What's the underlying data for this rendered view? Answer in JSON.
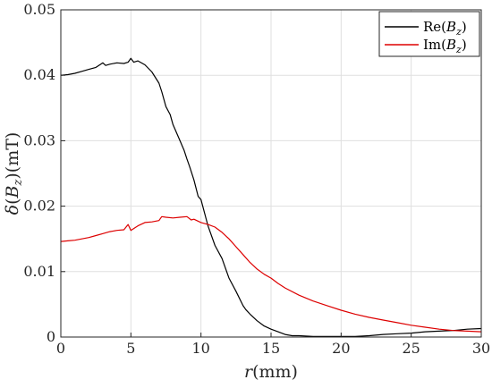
{
  "chart_data": {
    "type": "line",
    "xlabel": "r(mm)",
    "ylabel": "δ(B_z)(mT)",
    "xlim": [
      0,
      30
    ],
    "ylim": [
      0,
      0.05
    ],
    "xticks": [
      "0",
      "5",
      "10",
      "15",
      "20",
      "25",
      "30"
    ],
    "yticks": [
      "0",
      "0.01",
      "0.02",
      "0.03",
      "0.04",
      "0.05"
    ],
    "grid": true,
    "legend_position": "top-right",
    "series": [
      {
        "name": "Re(B_z)",
        "color": "#000000",
        "x": [
          0,
          0.5,
          1,
          1.5,
          2,
          2.5,
          3,
          3.2,
          3.5,
          4,
          4.5,
          4.8,
          5,
          5.2,
          5.5,
          6,
          6.5,
          7,
          7.2,
          7.5,
          7.8,
          8,
          8.5,
          8.8,
          9,
          9.2,
          9.5,
          9.8,
          10,
          10.5,
          11,
          11.5,
          12,
          12.5,
          13,
          13.2,
          13.5,
          14,
          14.5,
          15,
          15.5,
          16,
          16.5,
          17,
          18,
          19,
          20,
          21,
          22,
          23,
          24,
          25,
          26,
          27,
          28,
          29,
          30
        ],
        "y": [
          0.04,
          0.0401,
          0.0403,
          0.0406,
          0.0409,
          0.0412,
          0.0419,
          0.0415,
          0.0417,
          0.0419,
          0.0418,
          0.042,
          0.0426,
          0.042,
          0.0422,
          0.0416,
          0.0405,
          0.0388,
          0.0375,
          0.0352,
          0.034,
          0.0325,
          0.03,
          0.0285,
          0.0272,
          0.026,
          0.024,
          0.0215,
          0.021,
          0.017,
          0.014,
          0.012,
          0.009,
          0.007,
          0.0048,
          0.0042,
          0.0035,
          0.0025,
          0.0017,
          0.0012,
          0.0008,
          0.0004,
          0.0002,
          0.0002,
          0.0001,
          0.0001,
          0.0001,
          0.0001,
          0.0002,
          0.0004,
          0.0005,
          0.0006,
          0.0008,
          0.0009,
          0.001,
          0.0012,
          0.0013
        ]
      },
      {
        "name": "Im(B_z)",
        "color": "#dd0000",
        "x": [
          0,
          0.5,
          1,
          1.5,
          2,
          2.5,
          3,
          3.5,
          4,
          4.5,
          4.8,
          5,
          5.5,
          6,
          6.5,
          7,
          7.2,
          7.5,
          8,
          8.5,
          9,
          9.3,
          9.5,
          10,
          10.5,
          11,
          11.5,
          12,
          12.5,
          13,
          13.5,
          14,
          14.5,
          15,
          15.5,
          16,
          17,
          18,
          19,
          20,
          21,
          22,
          23,
          24,
          25,
          26,
          27,
          28,
          29,
          30
        ],
        "y": [
          0.0146,
          0.0147,
          0.0148,
          0.015,
          0.0152,
          0.0155,
          0.0158,
          0.0161,
          0.0163,
          0.0164,
          0.0172,
          0.0163,
          0.017,
          0.0175,
          0.0176,
          0.0178,
          0.0184,
          0.0183,
          0.0182,
          0.0183,
          0.0184,
          0.0179,
          0.018,
          0.0175,
          0.0172,
          0.0168,
          0.016,
          0.015,
          0.0138,
          0.0126,
          0.0114,
          0.0104,
          0.0096,
          0.009,
          0.0082,
          0.0075,
          0.0064,
          0.0055,
          0.0048,
          0.0041,
          0.0035,
          0.003,
          0.0026,
          0.0022,
          0.0018,
          0.0015,
          0.0012,
          0.001,
          0.0009,
          0.0008
        ]
      }
    ],
    "legend": [
      {
        "label": "Re(",
        "sym": "B",
        "sub": "z",
        "close": ")"
      },
      {
        "label": "Im(",
        "sym": "B",
        "sub": "z",
        "close": ")"
      }
    ]
  }
}
